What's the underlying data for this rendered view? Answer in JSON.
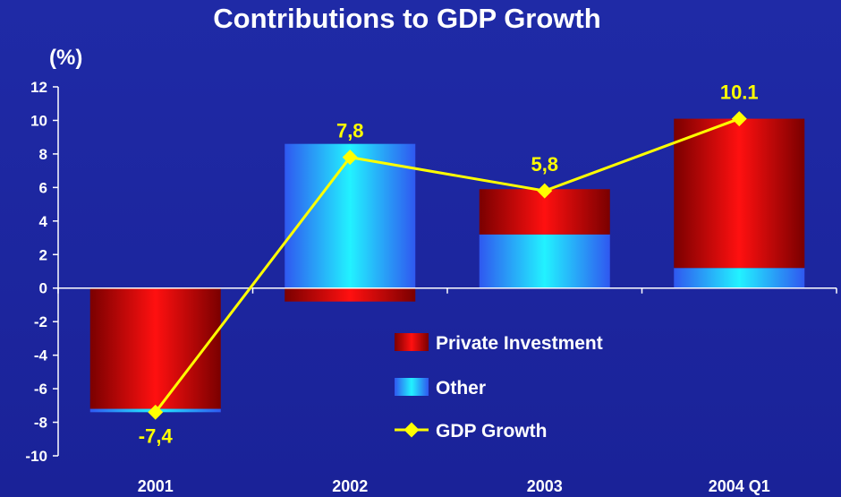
{
  "chart_data": {
    "type": "bar",
    "title": "Contributions to GDP Growth",
    "ylabel": "(%)",
    "xlabel": "",
    "categories": [
      "2001",
      "2002",
      "2003",
      "2004 Q1"
    ],
    "ylim": [
      -10,
      12
    ],
    "yticks": [
      12,
      10,
      8,
      6,
      4,
      2,
      0,
      -2,
      -4,
      -6,
      -8,
      -10
    ],
    "stacked": true,
    "series": [
      {
        "name": "Private Investment",
        "kind": "bar",
        "values": [
          -7.2,
          -0.8,
          2.7,
          8.9
        ]
      },
      {
        "name": "Other",
        "kind": "bar",
        "values": [
          -0.2,
          8.6,
          3.2,
          1.2
        ]
      },
      {
        "name": "GDP Growth",
        "kind": "line",
        "values": [
          -7.4,
          7.8,
          5.8,
          10.1
        ]
      }
    ],
    "data_labels": [
      "-7,4",
      "7,8",
      "5,8",
      "10.1"
    ],
    "legend_position": "center-right",
    "grid": false,
    "colors": {
      "background": "#1e28a2",
      "private_investment": "#e01010",
      "other": "#25e6f5",
      "gdp_growth": "#ffff00",
      "text": "#ffffff",
      "data_label": "#ffff00"
    }
  }
}
